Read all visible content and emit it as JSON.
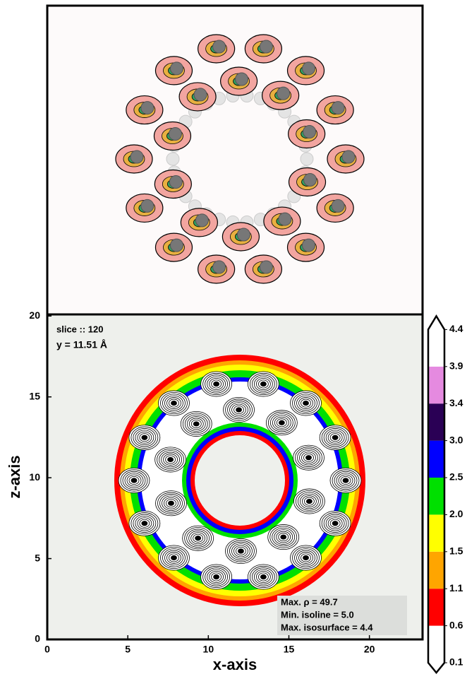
{
  "chart_data": {
    "type": "contour",
    "xlabel": "x-axis",
    "ylabel": "z-axis",
    "xlim": [
      0,
      23.3
    ],
    "xticks": [
      0,
      5,
      10,
      15,
      20
    ],
    "ylim": [
      0,
      20.1
    ],
    "yticks": [
      0,
      5,
      10,
      15,
      20
    ],
    "annotations": [
      "slice :: 120",
      "y = 11.51 Å"
    ],
    "info": [
      "Max. ρ = 49.7",
      "Min. isoline = 5.0",
      "Max. isosurface = 4.4"
    ],
    "colorbar": {
      "ticks": [
        0.1,
        0.6,
        1.1,
        1.5,
        {
          "value": 2,
          "label": "2.0"
        },
        2.5,
        {
          "value": 3,
          "label": "3.0"
        },
        3.4,
        3.9,
        4.4
      ],
      "colors": [
        "#ffffff",
        "#ff0000",
        "#ffa500",
        "#ffff00",
        "#00e000",
        "#0000ff",
        "#2a0055",
        "#e58ae0",
        "#ffffff"
      ]
    }
  }
}
